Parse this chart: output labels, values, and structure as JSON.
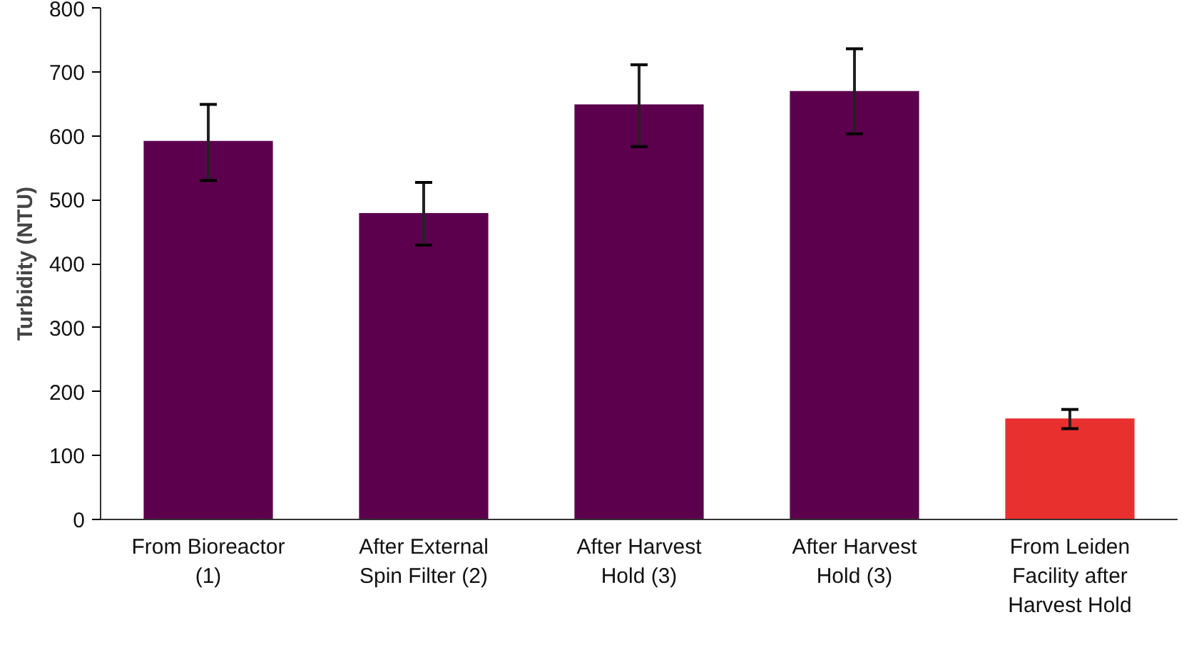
{
  "chart_data": {
    "type": "bar",
    "ylabel": "Turbidity (NTU)",
    "categories": [
      "From Bioreactor\n(1)",
      "After External\nSpin Filter (2)",
      "After Harvest\nHold (3)",
      "After Harvest\nHold (3)",
      "From Leiden\nFacility after\nHarvest Hold"
    ],
    "values": [
      592,
      479,
      649,
      670,
      158
    ],
    "colors": [
      "#5c004e",
      "#5c004e",
      "#5c004e",
      "#5c004e",
      "#e8302f"
    ],
    "errors": [
      [
        530,
        649
      ],
      [
        429,
        527
      ],
      [
        583,
        711
      ],
      [
        603,
        736
      ],
      [
        142,
        172
      ]
    ],
    "ylim": [
      0,
      800
    ],
    "yticks": [
      0,
      100,
      200,
      300,
      400,
      500,
      600,
      700,
      800
    ],
    "grid": false
  }
}
